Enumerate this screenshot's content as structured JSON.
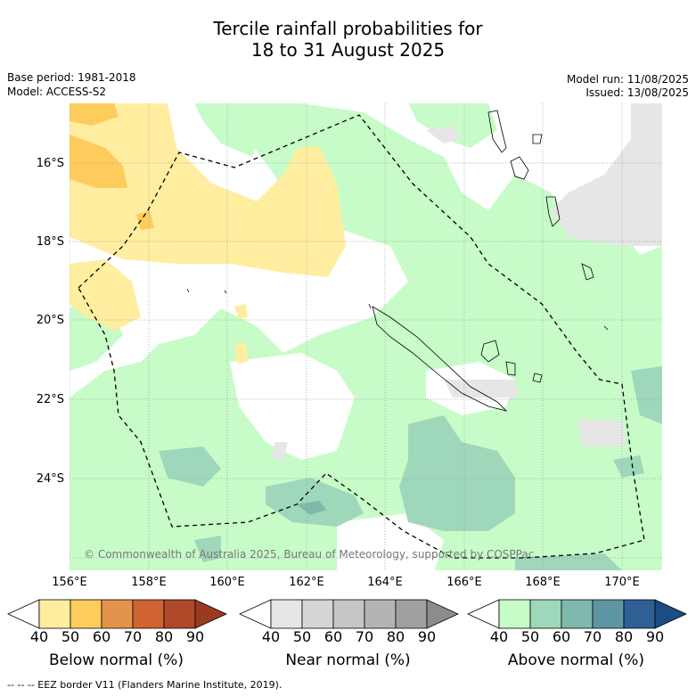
{
  "title_line1": "Tercile rainfall probabilities for",
  "title_line2": "18 to 31 August 2025",
  "base_period": "Base period: 1981-2018",
  "model": "Model: ACCESS-S2",
  "model_run": "Model run: 11/08/2025",
  "issued": "Issued: 13/08/2025",
  "copyright": "© Commonwealth of Australia 2025, Bureau of Meteorology, supported by COSPPac",
  "lat_labels": [
    "16°S",
    "18°S",
    "20°S",
    "22°S",
    "24°S"
  ],
  "lon_labels": [
    "156°E",
    "158°E",
    "160°E",
    "162°E",
    "164°E",
    "166°E",
    "168°E",
    "170°E"
  ],
  "colorbars": [
    {
      "name": "below",
      "title": "Below normal (%)",
      "ticks": [
        "40",
        "50",
        "60",
        "70",
        "80",
        "90"
      ],
      "colors": [
        "#ffffff",
        "#ffeda0",
        "#fecc5c",
        "#e3944a",
        "#cf6331",
        "#b0482a",
        "#9b3a1f"
      ]
    },
    {
      "name": "near",
      "title": "Near normal (%)",
      "ticks": [
        "40",
        "50",
        "60",
        "70",
        "80",
        "90"
      ],
      "colors": [
        "#ffffff",
        "#e6e6e6",
        "#d6d6d6",
        "#c6c6c6",
        "#b4b4b4",
        "#a0a0a0",
        "#8c8c8c"
      ]
    },
    {
      "name": "above",
      "title": "Above normal (%)",
      "ticks": [
        "40",
        "50",
        "60",
        "70",
        "80",
        "90"
      ],
      "colors": [
        "#ffffff",
        "#c7fcc9",
        "#9fd7ba",
        "#7fb8ad",
        "#5e96a4",
        "#2f6095",
        "#1a4c86"
      ]
    }
  ],
  "footnote": "-- -- -- EEZ border V11 (Flanders Marine Institute, 2019)."
}
